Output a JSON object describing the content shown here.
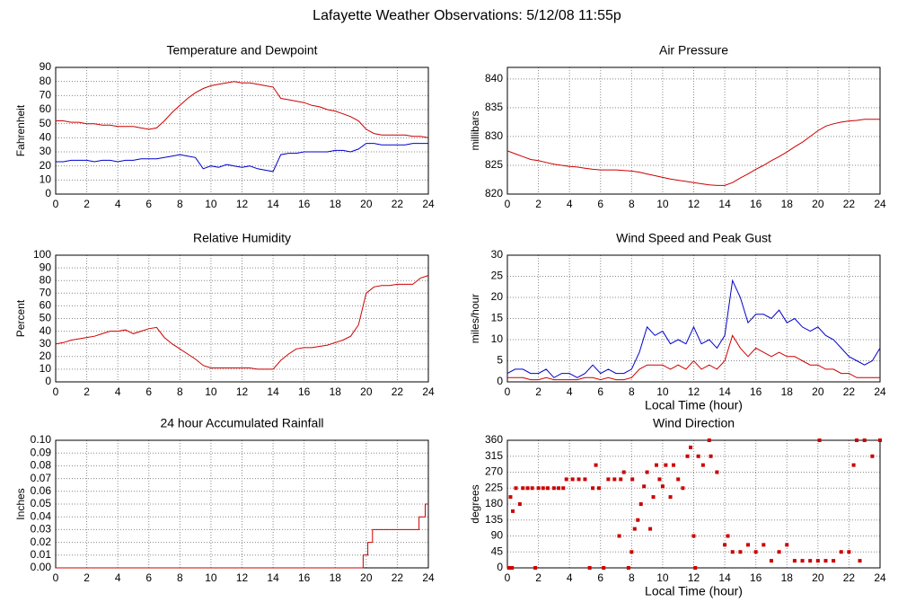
{
  "title": "Lafayette Weather Observations: 5/12/08 11:55p",
  "chart_data": [
    {
      "type": "line",
      "title": "Temperature and Dewpoint",
      "y_label": "Fahrenheit",
      "x": [
        0,
        0.5,
        1,
        1.5,
        2,
        2.5,
        3,
        3.5,
        4,
        4.5,
        5,
        5.5,
        6,
        6.5,
        7,
        7.5,
        8,
        8.5,
        9,
        9.5,
        10,
        10.5,
        11,
        11.5,
        12,
        12.5,
        13,
        13.5,
        14,
        14.5,
        15,
        15.5,
        16,
        16.5,
        17,
        17.5,
        18,
        18.5,
        19,
        19.5,
        20,
        20.5,
        21,
        21.5,
        22,
        22.5,
        23,
        23.5,
        24
      ],
      "series": [
        {
          "color": "#cc0000",
          "values": [
            52,
            52,
            51,
            51,
            50,
            50,
            49,
            49,
            48,
            48,
            48,
            47,
            46,
            47,
            52,
            58,
            63,
            68,
            72,
            75,
            77,
            78,
            79,
            80,
            79,
            79,
            78,
            77,
            76,
            68,
            67,
            66,
            65,
            63,
            62,
            60,
            59,
            57,
            55,
            52,
            46,
            43,
            42,
            42,
            42,
            42,
            41,
            41,
            40
          ]
        },
        {
          "color": "#0000cc",
          "values": [
            23,
            23,
            24,
            24,
            24,
            23,
            24,
            24,
            23,
            24,
            24,
            25,
            25,
            25,
            26,
            27,
            28,
            27,
            26,
            18,
            20,
            19,
            21,
            20,
            19,
            20,
            18,
            17,
            16,
            28,
            29,
            29,
            30,
            30,
            30,
            30,
            31,
            31,
            30,
            32,
            36,
            36,
            35,
            35,
            35,
            35,
            36,
            36,
            36
          ]
        }
      ],
      "xlim": [
        0,
        24
      ],
      "xticks": [
        0,
        2,
        4,
        6,
        8,
        10,
        12,
        14,
        16,
        18,
        20,
        22,
        24
      ],
      "ylim": [
        0,
        90
      ],
      "yticks": [
        0,
        10,
        20,
        30,
        40,
        50,
        60,
        70,
        80,
        90
      ],
      "grid": true
    },
    {
      "type": "line",
      "title": "Air Pressure",
      "y_label": "millibars",
      "x": [
        0,
        0.5,
        1,
        1.5,
        2,
        2.5,
        3,
        3.5,
        4,
        4.5,
        5,
        5.5,
        6,
        6.5,
        7,
        7.5,
        8,
        8.5,
        9,
        9.5,
        10,
        10.5,
        11,
        11.5,
        12,
        12.5,
        13,
        13.5,
        14,
        14.5,
        15,
        15.5,
        16,
        16.5,
        17,
        17.5,
        18,
        18.5,
        19,
        19.5,
        20,
        20.5,
        21,
        21.5,
        22,
        22.5,
        23,
        23.5,
        24
      ],
      "series": [
        {
          "color": "#cc0000",
          "values": [
            827.5,
            827,
            826.5,
            826,
            825.8,
            825.5,
            825.2,
            825,
            824.8,
            824.7,
            824.5,
            824.3,
            824.2,
            824.2,
            824.2,
            824.1,
            824,
            823.8,
            823.5,
            823.2,
            822.9,
            822.6,
            822.4,
            822.2,
            822,
            821.8,
            821.6,
            821.5,
            821.5,
            822,
            822.8,
            823.5,
            824.3,
            825,
            825.8,
            826.5,
            827.3,
            828.2,
            829,
            830,
            831,
            831.8,
            832.2,
            832.5,
            832.7,
            832.8,
            833,
            833,
            833
          ]
        }
      ],
      "xlim": [
        0,
        24
      ],
      "xticks": [
        0,
        2,
        4,
        6,
        8,
        10,
        12,
        14,
        16,
        18,
        20,
        22,
        24
      ],
      "ylim": [
        820,
        842
      ],
      "yticks": [
        820,
        825,
        830,
        835,
        840
      ],
      "grid": true
    },
    {
      "type": "line",
      "title": "Relative Humidity",
      "y_label": "Percent",
      "x": [
        0,
        0.5,
        1,
        1.5,
        2,
        2.5,
        3,
        3.5,
        4,
        4.5,
        5,
        5.5,
        6,
        6.5,
        7,
        7.5,
        8,
        8.5,
        9,
        9.5,
        10,
        10.5,
        11,
        11.5,
        12,
        12.5,
        13,
        13.5,
        14,
        14.5,
        15,
        15.5,
        16,
        16.5,
        17,
        17.5,
        18,
        18.5,
        19,
        19.5,
        20,
        20.5,
        21,
        21.5,
        22,
        22.5,
        23,
        23.5,
        24
      ],
      "series": [
        {
          "color": "#cc0000",
          "values": [
            30,
            31,
            33,
            34,
            35,
            36,
            38,
            40,
            40,
            41,
            38,
            40,
            42,
            43,
            35,
            30,
            26,
            22,
            18,
            13,
            11,
            11,
            11,
            11,
            11,
            11,
            10,
            10,
            10,
            17,
            22,
            26,
            27,
            27,
            28,
            29,
            31,
            33,
            36,
            45,
            70,
            75,
            76,
            76,
            77,
            77,
            77,
            82,
            84
          ]
        }
      ],
      "xlim": [
        0,
        24
      ],
      "xticks": [
        0,
        2,
        4,
        6,
        8,
        10,
        12,
        14,
        16,
        18,
        20,
        22,
        24
      ],
      "ylim": [
        0,
        100
      ],
      "yticks": [
        0,
        10,
        20,
        30,
        40,
        50,
        60,
        70,
        80,
        90,
        100
      ],
      "grid": true
    },
    {
      "type": "line",
      "title": "Wind Speed and Peak Gust",
      "y_label": "miles/hour",
      "x_label": "Local Time (hour)",
      "x": [
        0,
        0.5,
        1,
        1.5,
        2,
        2.5,
        3,
        3.5,
        4,
        4.5,
        5,
        5.5,
        6,
        6.5,
        7,
        7.5,
        8,
        8.5,
        9,
        9.5,
        10,
        10.5,
        11,
        11.5,
        12,
        12.5,
        13,
        13.5,
        14,
        14.5,
        15,
        15.5,
        16,
        16.5,
        17,
        17.5,
        18,
        18.5,
        19,
        19.5,
        20,
        20.5,
        21,
        21.5,
        22,
        22.5,
        23,
        23.5,
        24
      ],
      "series": [
        {
          "color": "#0000cc",
          "values": [
            2,
            3,
            3,
            2,
            2,
            3,
            1,
            2,
            2,
            1,
            2,
            4,
            2,
            3,
            2,
            2,
            3,
            7,
            13,
            11,
            12,
            9,
            10,
            9,
            13,
            9,
            10,
            8,
            11,
            24,
            20,
            14,
            16,
            16,
            15,
            17,
            14,
            15,
            13,
            12,
            13,
            11,
            10,
            8,
            6,
            5,
            4,
            5,
            8
          ]
        },
        {
          "color": "#cc0000",
          "values": [
            1,
            1,
            1,
            0.5,
            0.5,
            1,
            0.5,
            0.5,
            0.5,
            0.5,
            1,
            1,
            0.5,
            1,
            0.5,
            0.5,
            1,
            3,
            4,
            4,
            4,
            3,
            4,
            3,
            5,
            3,
            4,
            3,
            5,
            11,
            8,
            6,
            8,
            7,
            6,
            7,
            6,
            6,
            5,
            4,
            4,
            3,
            3,
            2,
            2,
            1,
            1,
            1,
            1
          ]
        }
      ],
      "xlim": [
        0,
        24
      ],
      "xticks": [
        0,
        2,
        4,
        6,
        8,
        10,
        12,
        14,
        16,
        18,
        20,
        22,
        24
      ],
      "ylim": [
        0,
        30
      ],
      "yticks": [
        0,
        5,
        10,
        15,
        20,
        25,
        30
      ],
      "grid": true
    },
    {
      "type": "line",
      "title": "24 hour Accumulated Rainfall",
      "y_label": "Inches",
      "x": [
        0,
        19.8,
        19.8,
        20.1,
        20.1,
        20.4,
        20.4,
        23.4,
        23.4,
        23.8,
        23.8,
        24
      ],
      "series": [
        {
          "color": "#cc0000",
          "values": [
            0,
            0,
            0.01,
            0.01,
            0.02,
            0.02,
            0.03,
            0.03,
            0.04,
            0.04,
            0.05,
            0.05
          ]
        }
      ],
      "xlim": [
        0,
        24
      ],
      "xticks": [
        0,
        2,
        4,
        6,
        8,
        10,
        12,
        14,
        16,
        18,
        20,
        22,
        24
      ],
      "ylim": [
        0,
        0.1
      ],
      "yticks": [
        {
          "value": 0,
          "label": "0.00"
        },
        {
          "value": 0.01,
          "label": "0.01"
        },
        {
          "value": 0.02,
          "label": "0.02"
        },
        {
          "value": 0.03,
          "label": "0.03"
        },
        {
          "value": 0.04,
          "label": "0.04"
        },
        {
          "value": 0.05,
          "label": "0.05"
        },
        {
          "value": 0.06,
          "label": "0.06"
        },
        {
          "value": 0.07,
          "label": "0.07"
        },
        {
          "value": 0.08,
          "label": "0.08"
        },
        {
          "value": 0.09,
          "label": "0.09"
        },
        {
          "value": 0.1,
          "label": "0.10"
        }
      ],
      "grid": true
    },
    {
      "type": "scatter",
      "title": "Wind Direction",
      "y_label": "degrees",
      "x_label": "Local Time (hour)",
      "color": "#cc0000",
      "x": [
        0.1,
        0.3,
        0.2,
        0.35,
        0.55,
        0.8,
        1,
        1.3,
        1.6,
        1.8,
        2,
        2.3,
        2.6,
        3,
        3.3,
        3.6,
        3.8,
        4.2,
        4.6,
        5,
        5.3,
        5.5,
        5.7,
        5.9,
        6.2,
        6.5,
        6.9,
        7.2,
        7.3,
        7.5,
        7.8,
        8,
        8.05,
        8.2,
        8.4,
        8.6,
        8.8,
        9,
        9.2,
        9.4,
        9.6,
        9.8,
        10,
        10.2,
        10.5,
        10.7,
        11,
        11.3,
        11.6,
        11.8,
        12,
        12.1,
        12.3,
        12.6,
        13,
        13.1,
        13.5,
        14,
        14.2,
        14.5,
        15,
        15.5,
        16,
        16.5,
        17,
        17.5,
        18,
        18.5,
        19,
        19.5,
        20,
        20.1,
        20.5,
        21,
        21.5,
        22,
        22.3,
        22.5,
        22.7,
        23,
        23.5,
        24
      ],
      "values": [
        0,
        0,
        200,
        160,
        225,
        180,
        225,
        225,
        225,
        0,
        225,
        225,
        225,
        225,
        225,
        225,
        250,
        250,
        250,
        250,
        0,
        225,
        290,
        225,
        0,
        250,
        250,
        90,
        250,
        270,
        0,
        45,
        250,
        110,
        135,
        180,
        230,
        270,
        110,
        200,
        290,
        250,
        230,
        290,
        200,
        290,
        250,
        225,
        315,
        340,
        90,
        0,
        315,
        290,
        360,
        315,
        270,
        65,
        90,
        45,
        45,
        65,
        45,
        65,
        20,
        45,
        65,
        20,
        20,
        20,
        20,
        360,
        20,
        20,
        45,
        45,
        290,
        360,
        20,
        360,
        315,
        360
      ],
      "xlim": [
        0,
        24
      ],
      "xticks": [
        0,
        2,
        4,
        6,
        8,
        10,
        12,
        14,
        16,
        18,
        20,
        22,
        24
      ],
      "ylim": [
        0,
        360
      ],
      "yticks": [
        0,
        45,
        90,
        135,
        180,
        225,
        270,
        315,
        360
      ],
      "grid": true
    }
  ]
}
